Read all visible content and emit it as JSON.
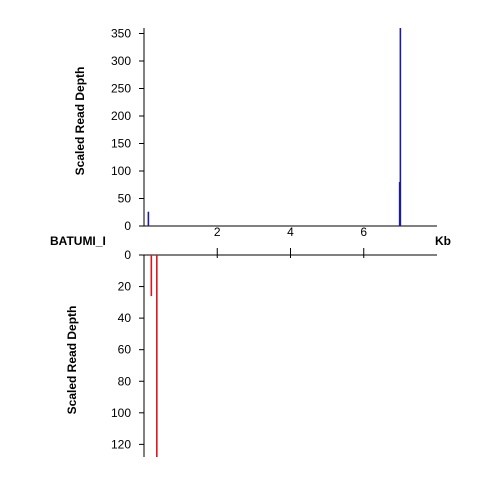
{
  "chart_data": {
    "type": "bar",
    "sample_label": "BATUMI_I",
    "x_unit_label": "Kb",
    "xlim": [
      0,
      8
    ],
    "x_ticks": [
      2,
      4,
      6
    ],
    "colors": {
      "top": "#1a1aa8",
      "bottom": "#e0141e",
      "axis": "#000000"
    },
    "panels": [
      {
        "id": "top",
        "ylabel": "Scaled Read Depth",
        "ylim": [
          0,
          360
        ],
        "y_ticks": [
          0,
          50,
          100,
          150,
          200,
          250,
          300,
          350
        ],
        "direction": "up",
        "bars": [
          {
            "x": 0.12,
            "value": 26
          },
          {
            "x": 6.98,
            "value": 80
          },
          {
            "x": 7.0,
            "value": 360
          }
        ]
      },
      {
        "id": "bottom",
        "ylabel": "Scaled Read Depth",
        "ylim": [
          0,
          128
        ],
        "y_ticks": [
          0,
          20,
          40,
          60,
          80,
          100,
          120
        ],
        "direction": "down",
        "bars": [
          {
            "x": 0.2,
            "value": 26
          },
          {
            "x": 0.35,
            "value": 128
          }
        ]
      }
    ]
  }
}
